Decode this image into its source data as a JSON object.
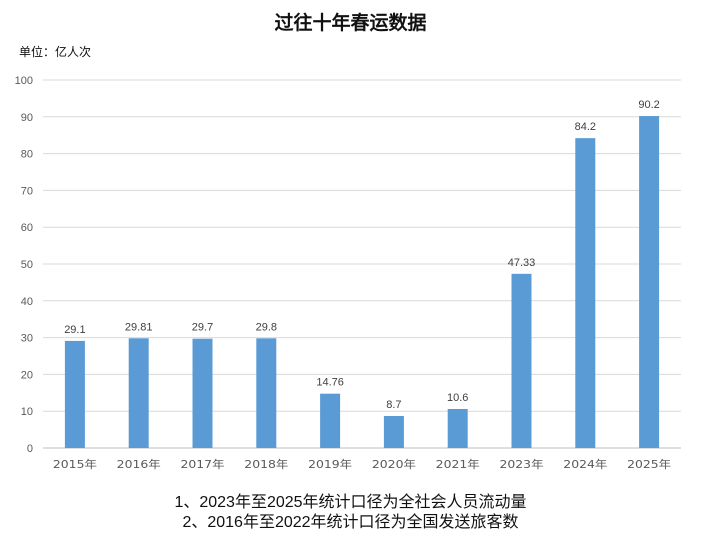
{
  "chart_data": {
    "type": "bar",
    "title": "过往十年春运数据",
    "unit_label": "单位：亿人次",
    "categories": [
      "2015年",
      "2016年",
      "2017年",
      "2018年",
      "2019年",
      "2020年",
      "2021年",
      "2023年",
      "2024年",
      "2025年"
    ],
    "values": [
      29.1,
      29.81,
      29.7,
      29.8,
      14.76,
      8.7,
      10.6,
      47.33,
      84.2,
      90.2
    ],
    "data_labels": [
      "29.1",
      "29.81",
      "29.7",
      "29.8",
      "14.76",
      "8.7",
      "10.6",
      "47.33",
      "84.2",
      "90.2"
    ],
    "ylim": [
      0,
      100
    ],
    "yticks": [
      0,
      10,
      20,
      30,
      40,
      50,
      60,
      70,
      80,
      90,
      100
    ],
    "grid": true,
    "bar_color": "#5b9bd5",
    "xlabel": "",
    "ylabel": ""
  },
  "notes": [
    "1、2023年至2025年统计口径为全社会人员流动量",
    "2、2016年至2022年统计口径为全国发送旅客数"
  ]
}
